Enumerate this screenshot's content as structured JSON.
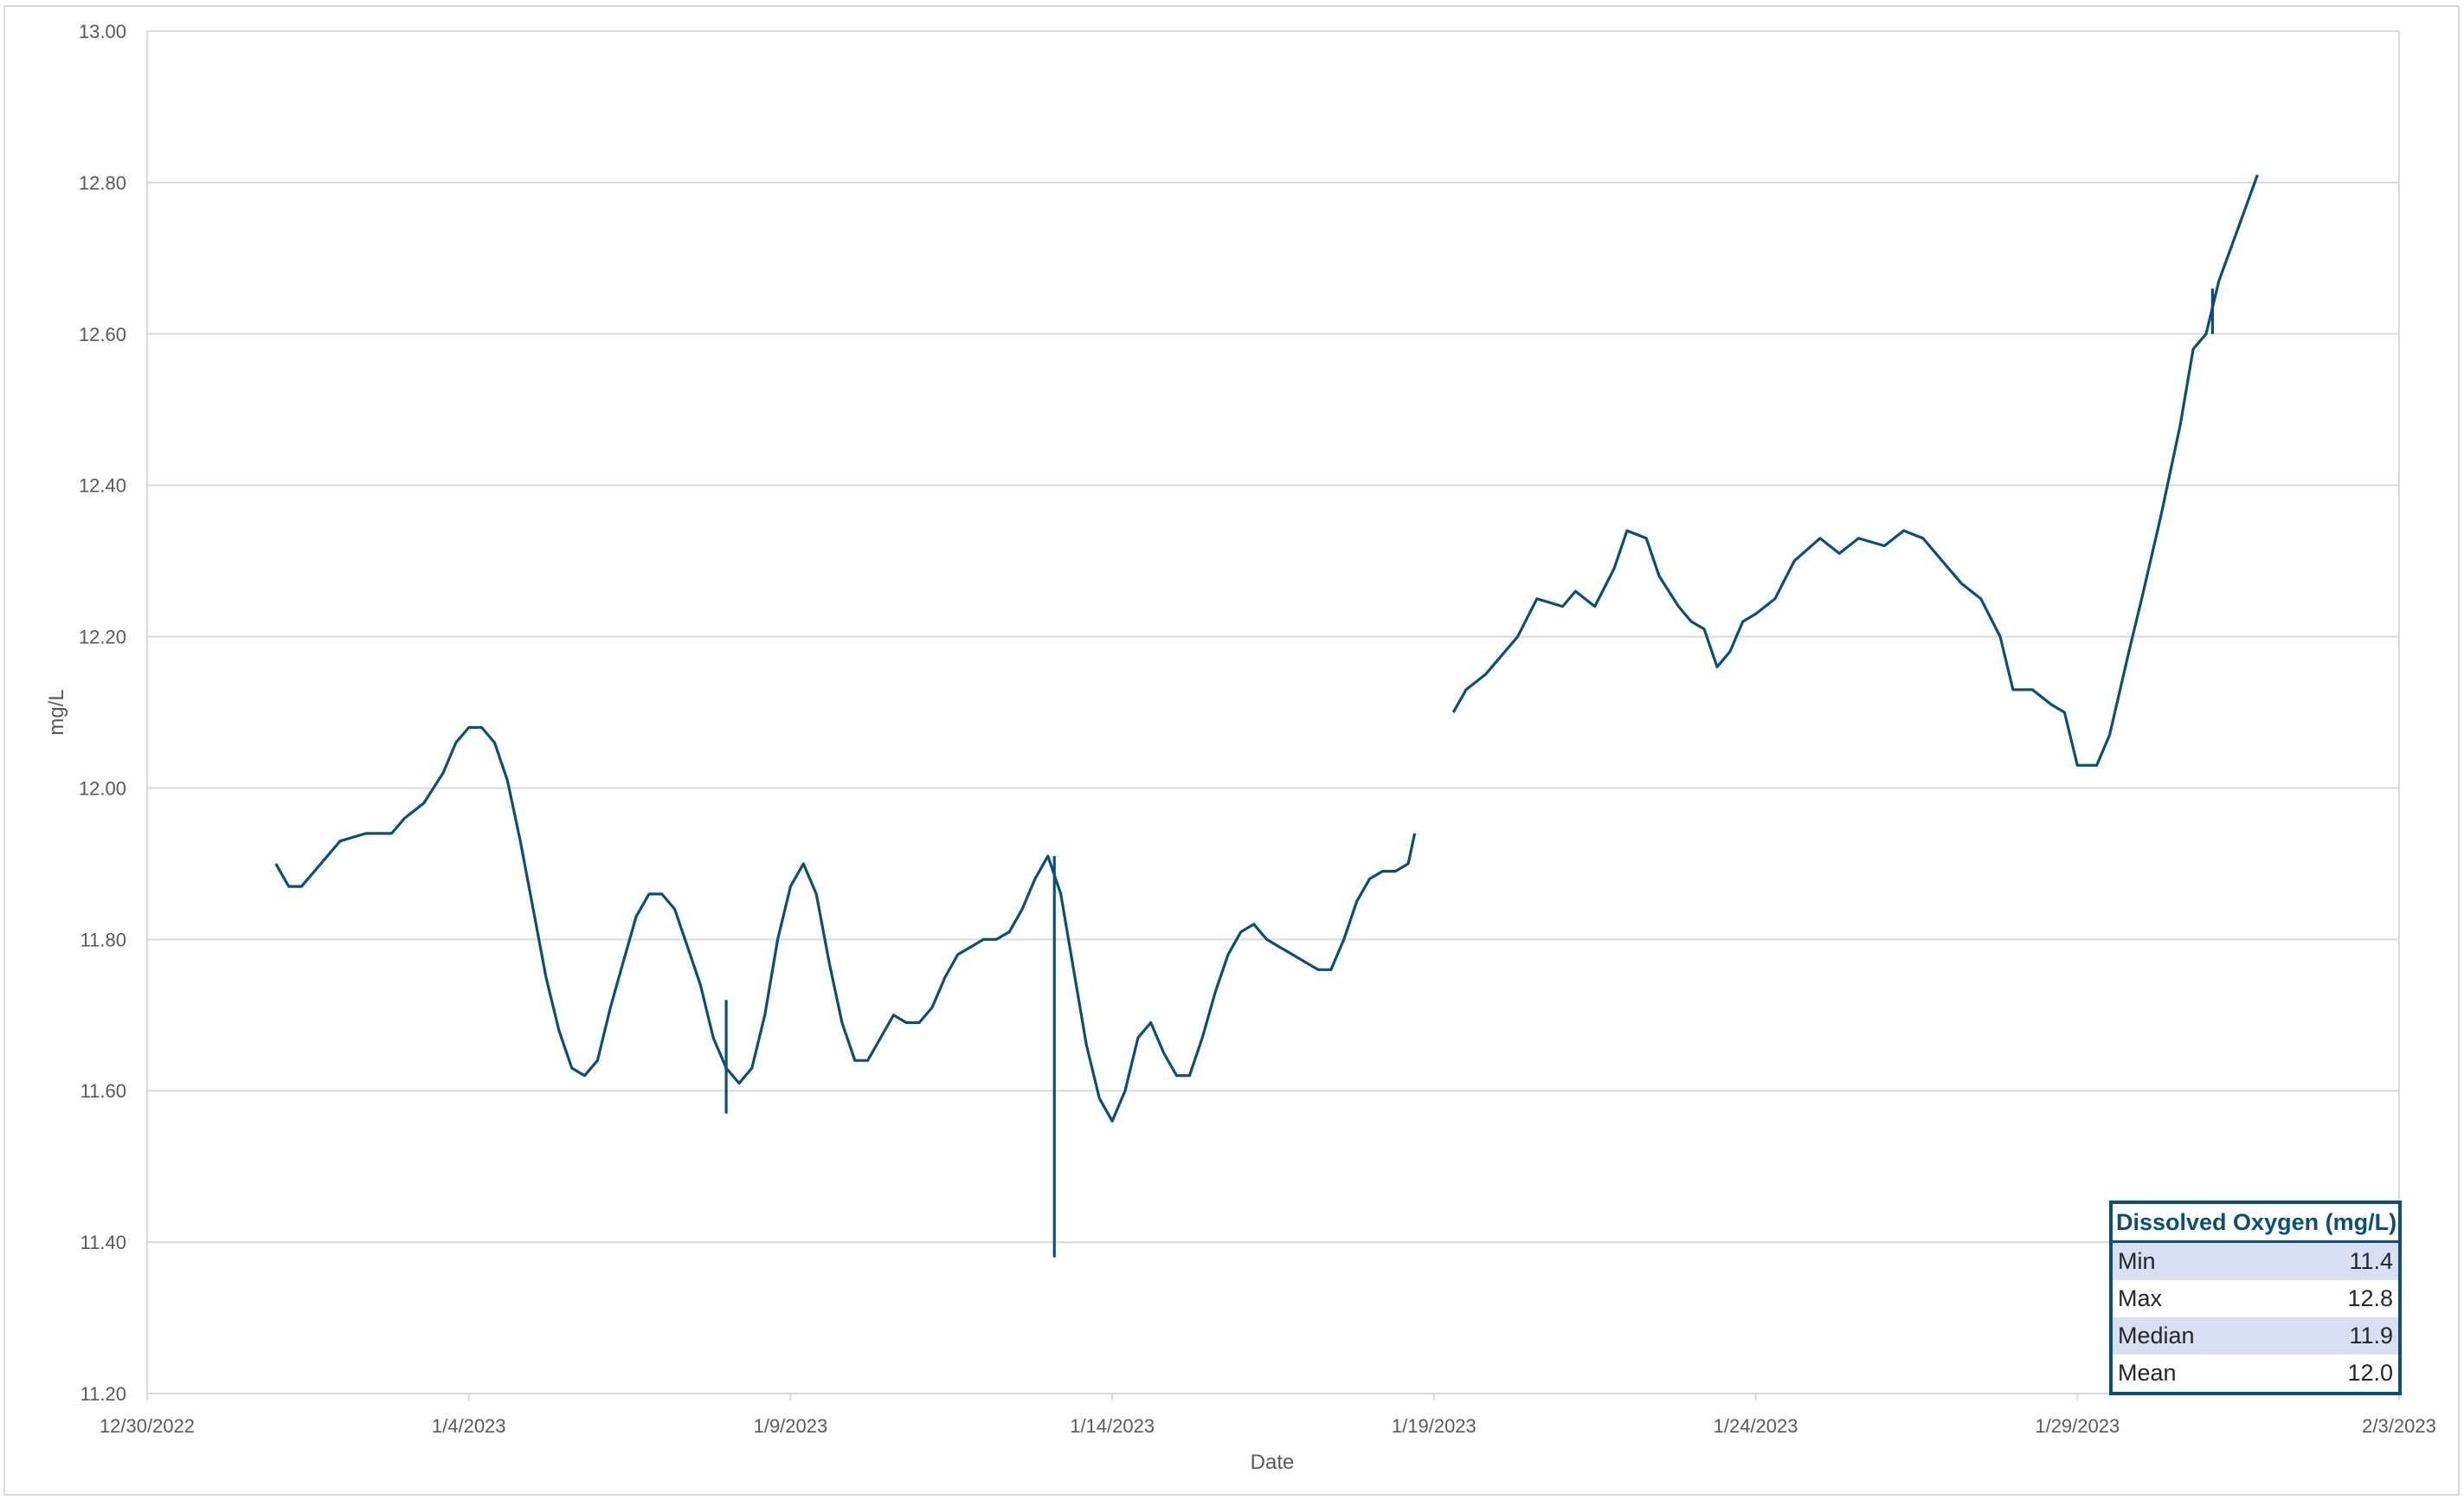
{
  "chart_data": {
    "type": "line",
    "title": "",
    "xlabel": "Date",
    "ylabel": "mg/L",
    "x_ticks": [
      "12/30/2022",
      "1/4/2023",
      "1/9/2023",
      "1/14/2023",
      "1/19/2023",
      "1/24/2023",
      "1/29/2023",
      "2/3/2023"
    ],
    "y_ticks": [
      "11.20",
      "11.40",
      "11.60",
      "11.80",
      "12.00",
      "12.20",
      "12.40",
      "12.60",
      "12.80",
      "13.00"
    ],
    "xlim": [
      "2022-12-30",
      "2023-02-03"
    ],
    "ylim": [
      11.2,
      13.0
    ],
    "grid": "horizontal",
    "colors": {
      "series": "#0b4f78",
      "grid": "#d9d9d9",
      "table_header": "#0b4f78",
      "table_shade": "#d9dff2"
    },
    "series": [
      {
        "segments": [
          [
            [
              "2023-01-01",
              11.9
            ],
            [
              "2023-01-01.2",
              11.87
            ],
            [
              "2023-01-01.4",
              11.87
            ],
            [
              "2023-01-01.6",
              11.89
            ],
            [
              "2023-01-02.0",
              11.93
            ],
            [
              "2023-01-02.4",
              11.94
            ],
            [
              "2023-01-02.8",
              11.94
            ],
            [
              "2023-01-03.0",
              11.96
            ],
            [
              "2023-01-03.3",
              11.98
            ],
            [
              "2023-01-03.6",
              12.02
            ],
            [
              "2023-01-03.8",
              12.06
            ],
            [
              "2023-01-04.0",
              12.08
            ],
            [
              "2023-01-04.2",
              12.08
            ],
            [
              "2023-01-04.4",
              12.06
            ],
            [
              "2023-01-04.6",
              12.01
            ],
            [
              "2023-01-04.8",
              11.93
            ],
            [
              "2023-01-05.0",
              11.84
            ],
            [
              "2023-01-05.2",
              11.75
            ],
            [
              "2023-01-05.4",
              11.68
            ],
            [
              "2023-01-05.6",
              11.63
            ],
            [
              "2023-01-05.8",
              11.62
            ],
            [
              "2023-01-06.0",
              11.64
            ],
            [
              "2023-01-06.2",
              11.71
            ],
            [
              "2023-01-06.4",
              11.77
            ],
            [
              "2023-01-06.6",
              11.83
            ],
            [
              "2023-01-06.8",
              11.86
            ],
            [
              "2023-01-07.0",
              11.86
            ],
            [
              "2023-01-07.2",
              11.84
            ],
            [
              "2023-01-07.4",
              11.79
            ],
            [
              "2023-01-07.6",
              11.74
            ],
            [
              "2023-01-07.8",
              11.67
            ],
            [
              "2023-01-08.0",
              11.63
            ],
            [
              "2023-01-08.2",
              11.61
            ],
            [
              "2023-01-08.4",
              11.63
            ],
            [
              "2023-01-08.6",
              11.7
            ],
            [
              "2023-01-08.8",
              11.8
            ],
            [
              "2023-01-09.0",
              11.87
            ],
            [
              "2023-01-09.2",
              11.9
            ],
            [
              "2023-01-09.4",
              11.86
            ],
            [
              "2023-01-09.6",
              11.77
            ],
            [
              "2023-01-09.8",
              11.69
            ],
            [
              "2023-01-10.0",
              11.64
            ],
            [
              "2023-01-10.2",
              11.64
            ],
            [
              "2023-01-10.4",
              11.67
            ],
            [
              "2023-01-10.6",
              11.7
            ],
            [
              "2023-01-10.8",
              11.69
            ],
            [
              "2023-01-11.0",
              11.69
            ],
            [
              "2023-01-11.2",
              11.71
            ],
            [
              "2023-01-11.4",
              11.75
            ],
            [
              "2023-01-11.6",
              11.78
            ],
            [
              "2023-01-11.8",
              11.79
            ],
            [
              "2023-01-12.0",
              11.8
            ],
            [
              "2023-01-12.2",
              11.8
            ],
            [
              "2023-01-12.4",
              11.81
            ],
            [
              "2023-01-12.6",
              11.84
            ],
            [
              "2023-01-12.8",
              11.88
            ],
            [
              "2023-01-13.0",
              11.91
            ],
            [
              "2023-01-13.2",
              11.86
            ],
            [
              "2023-01-13.4",
              11.76
            ],
            [
              "2023-01-13.6",
              11.66
            ],
            [
              "2023-01-13.8",
              11.59
            ],
            [
              "2023-01-14.0",
              11.56
            ],
            [
              "2023-01-14.2",
              11.6
            ],
            [
              "2023-01-14.4",
              11.67
            ],
            [
              "2023-01-14.6",
              11.69
            ],
            [
              "2023-01-14.8",
              11.65
            ],
            [
              "2023-01-15.0",
              11.62
            ],
            [
              "2023-01-15.2",
              11.62
            ],
            [
              "2023-01-15.4",
              11.67
            ],
            [
              "2023-01-15.6",
              11.73
            ],
            [
              "2023-01-15.8",
              11.78
            ],
            [
              "2023-01-16.0",
              11.81
            ],
            [
              "2023-01-16.2",
              11.82
            ],
            [
              "2023-01-16.4",
              11.8
            ],
            [
              "2023-01-16.6",
              11.79
            ],
            [
              "2023-01-16.8",
              11.78
            ],
            [
              "2023-01-17.0",
              11.77
            ],
            [
              "2023-01-17.2",
              11.76
            ],
            [
              "2023-01-17.4",
              11.76
            ],
            [
              "2023-01-17.6",
              11.8
            ],
            [
              "2023-01-17.8",
              11.85
            ],
            [
              "2023-01-18.0",
              11.88
            ],
            [
              "2023-01-18.2",
              11.89
            ],
            [
              "2023-01-18.4",
              11.89
            ],
            [
              "2023-01-18.6",
              11.9
            ],
            [
              "2023-01-18.7",
              11.94
            ]
          ],
          [
            [
              "2023-01-19.3",
              12.1
            ],
            [
              "2023-01-19.5",
              12.13
            ],
            [
              "2023-01-19.8",
              12.15
            ],
            [
              "2023-01-20.0",
              12.17
            ],
            [
              "2023-01-20.3",
              12.2
            ],
            [
              "2023-01-20.6",
              12.25
            ],
            [
              "2023-01-21.0",
              12.24
            ],
            [
              "2023-01-21.2",
              12.26
            ],
            [
              "2023-01-21.5",
              12.24
            ],
            [
              "2023-01-21.8",
              12.29
            ],
            [
              "2023-01-22.0",
              12.34
            ],
            [
              "2023-01-22.3",
              12.33
            ],
            [
              "2023-01-22.5",
              12.28
            ],
            [
              "2023-01-22.8",
              12.24
            ],
            [
              "2023-01-23.0",
              12.22
            ],
            [
              "2023-01-23.2",
              12.21
            ],
            [
              "2023-01-23.4",
              12.16
            ],
            [
              "2023-01-23.6",
              12.18
            ],
            [
              "2023-01-23.8",
              12.22
            ],
            [
              "2023-01-24.0",
              12.23
            ],
            [
              "2023-01-24.3",
              12.25
            ],
            [
              "2023-01-24.6",
              12.3
            ],
            [
              "2023-01-25.0",
              12.33
            ],
            [
              "2023-01-25.3",
              12.31
            ],
            [
              "2023-01-25.6",
              12.33
            ],
            [
              "2023-01-26.0",
              12.32
            ],
            [
              "2023-01-26.3",
              12.34
            ],
            [
              "2023-01-26.6",
              12.33
            ],
            [
              "2023-01-26.9",
              12.3
            ],
            [
              "2023-01-27.2",
              12.27
            ],
            [
              "2023-01-27.5",
              12.25
            ],
            [
              "2023-01-27.8",
              12.2
            ],
            [
              "2023-01-28.0",
              12.13
            ],
            [
              "2023-01-28.3",
              12.13
            ],
            [
              "2023-01-28.6",
              12.11
            ],
            [
              "2023-01-28.8",
              12.1
            ],
            [
              "2023-01-29.0",
              12.03
            ],
            [
              "2023-01-29.3",
              12.03
            ],
            [
              "2023-01-29.5",
              12.07
            ],
            [
              "2023-01-29.8",
              12.18
            ],
            [
              "2023-01-30.0",
              12.25
            ],
            [
              "2023-01-30.3",
              12.36
            ],
            [
              "2023-01-30.6",
              12.48
            ],
            [
              "2023-01-30.8",
              12.58
            ],
            [
              "2023-01-31.0",
              12.6
            ],
            [
              "2023-01-31.2",
              12.67
            ],
            [
              "2023-01-31.5",
              12.74
            ],
            [
              "2023-01-31.8",
              12.81
            ]
          ]
        ],
        "spikes": [
          [
            "2023-01-08.0",
            11.72,
            11.57
          ],
          [
            "2023-01-13.1",
            11.91,
            11.38
          ],
          [
            "2023-01-31.1",
            12.66,
            12.6
          ]
        ]
      }
    ]
  },
  "stats_table": {
    "title": "Dissolved Oxygen (mg/L)",
    "rows": [
      {
        "label": "Min",
        "value": "11.4"
      },
      {
        "label": "Max",
        "value": "12.8"
      },
      {
        "label": "Median",
        "value": "11.9"
      },
      {
        "label": "Mean",
        "value": "12.0"
      }
    ]
  }
}
